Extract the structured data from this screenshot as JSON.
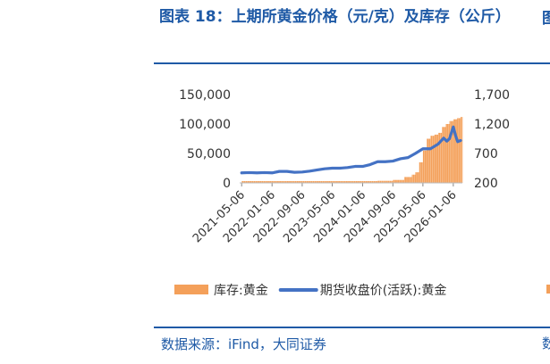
{
  "figure": {
    "title": "图表 18：上期所黄金价格（元/克）及库存（公斤）",
    "source": "数据来源：iFind，大同证券",
    "edge_title_fragment": "图",
    "edge_title_fragment2": "（",
    "edge_source_fragment": "数"
  },
  "chart_data": {
    "type": "bar+line",
    "x_ticks": [
      "2021-05-06",
      "2022-01-06",
      "2022-09-06",
      "2023-05-06",
      "2024-01-06",
      "2024-09-06",
      "2025-05-06",
      "2026-01-06"
    ],
    "left_axis": {
      "ticks": [
        "150,000",
        "100,000",
        "50,000",
        "0"
      ],
      "min": 0,
      "max": 150000
    },
    "right_axis": {
      "ticks": [
        "1,700",
        "1,200",
        "700",
        "200"
      ],
      "min": 200,
      "max": 1700
    },
    "legend": [
      {
        "name": "库存:黄金",
        "kind": "bar",
        "color": "#f4a05a"
      },
      {
        "name": "期货收盘价(活跃):黄金",
        "kind": "line",
        "color": "#4472c4"
      }
    ],
    "series": [
      {
        "name": "库存:黄金",
        "axis": "left",
        "kind": "bar",
        "x": [
          "2021-05-06",
          "2021-09-06",
          "2022-01-06",
          "2022-05-06",
          "2022-09-06",
          "2023-01-06",
          "2023-05-06",
          "2023-09-06",
          "2024-01-06",
          "2024-05-06",
          "2024-09-06",
          "2024-12-06",
          "2025-02-06",
          "2025-03-06",
          "2025-04-06",
          "2025-05-06",
          "2025-06-06",
          "2025-07-06",
          "2025-08-06",
          "2025-09-06",
          "2025-10-06",
          "2025-11-06",
          "2025-12-06",
          "2026-01-06",
          "2026-02-06",
          "2026-03-06"
        ],
        "values": [
          3000,
          3000,
          3000,
          3000,
          3000,
          3000,
          3000,
          3000,
          3000,
          3500,
          5000,
          10000,
          14000,
          18000,
          35000,
          55000,
          75000,
          80000,
          82000,
          85000,
          95000,
          100000,
          105000,
          108000,
          110000,
          112000
        ]
      },
      {
        "name": "期货收盘价(活跃):黄金",
        "axis": "right",
        "kind": "line",
        "x": [
          "2021-05-06",
          "2021-07-06",
          "2021-09-06",
          "2021-11-06",
          "2022-01-06",
          "2022-03-06",
          "2022-05-06",
          "2022-07-06",
          "2022-09-06",
          "2022-11-06",
          "2023-01-06",
          "2023-03-06",
          "2023-05-06",
          "2023-07-06",
          "2023-09-06",
          "2023-11-06",
          "2024-01-06",
          "2024-03-06",
          "2024-05-06",
          "2024-07-06",
          "2024-09-06",
          "2024-11-06",
          "2025-01-06",
          "2025-03-06",
          "2025-05-06",
          "2025-07-06",
          "2025-09-06",
          "2025-10-20",
          "2025-11-15",
          "2025-12-06",
          "2026-01-06",
          "2026-01-25",
          "2026-02-10",
          "2026-03-06"
        ],
        "values": [
          370,
          375,
          370,
          375,
          370,
          395,
          395,
          380,
          385,
          400,
          420,
          440,
          450,
          450,
          460,
          480,
          480,
          510,
          560,
          560,
          570,
          610,
          630,
          700,
          780,
          780,
          860,
          960,
          910,
          950,
          1150,
          1000,
          900,
          920
        ]
      }
    ],
    "grid": false,
    "legend_position": "bottom"
  }
}
